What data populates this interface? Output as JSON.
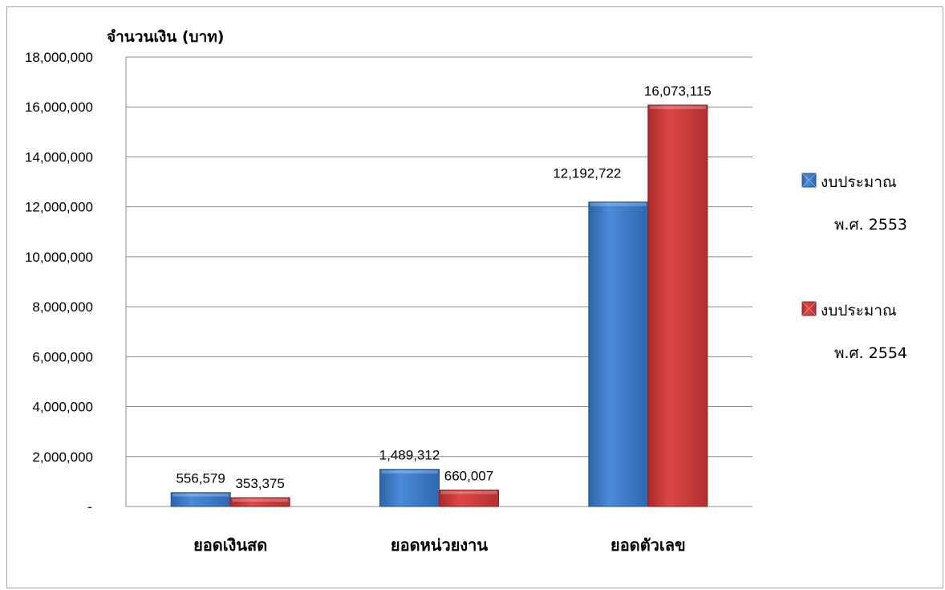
{
  "chart_data": {
    "type": "bar",
    "ylabel": "จำนวนเงิน (บาท)",
    "categories": [
      "ยอดเงินสด",
      "ยอดหน่วยงาน",
      "ยอดตัวเลข"
    ],
    "series": [
      {
        "name": "งบประมาณ พ.ศ. 2553",
        "name_lines": [
          "งบประมาณ",
          "พ.ศ. 2553"
        ],
        "color": "#3f7fd0",
        "values": [
          556579,
          1489312,
          12192722
        ],
        "labels": [
          "556,579",
          "1,489,312",
          "12,192,722"
        ]
      },
      {
        "name": "งบประมาณ พ.ศ. 2554",
        "name_lines": [
          "งบประมาณ",
          "พ.ศ. 2554"
        ],
        "color": "#d23a3a",
        "values": [
          353375,
          660007,
          16073115
        ],
        "labels": [
          "353,375",
          "660,007",
          "16,073,115"
        ]
      }
    ],
    "ylim": [
      0,
      18000000
    ],
    "ytick_labels": [
      "-",
      "2,000,000",
      "4,000,000",
      "6,000,000",
      "8,000,000",
      "10,000,000",
      "12,000,000",
      "14,000,000",
      "16,000,000",
      "18,000,000"
    ],
    "grid": true,
    "legend": "right"
  }
}
